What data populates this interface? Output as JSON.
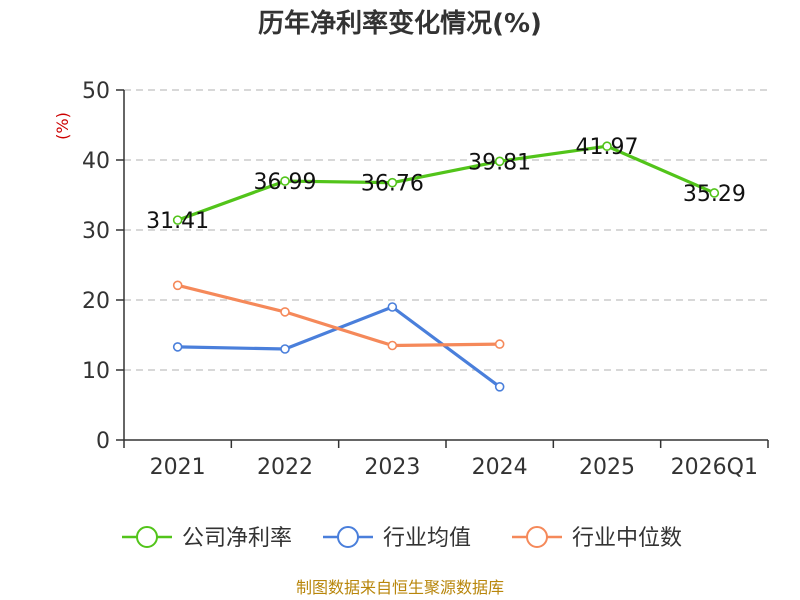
{
  "chart_data": {
    "type": "line",
    "title": "历年净利率变化情况(%)",
    "ylabel": "(%)",
    "xlabel": "",
    "categories": [
      "2021",
      "2022",
      "2023",
      "2024",
      "2025",
      "2026Q1"
    ],
    "ylim": [
      0,
      50
    ],
    "yticks": [
      0,
      10,
      20,
      30,
      40,
      50
    ],
    "grid": true,
    "legend_position": "bottom",
    "series": [
      {
        "name": "公司净利率",
        "color": "#52c41a",
        "values": [
          31.41,
          36.99,
          36.76,
          39.81,
          41.97,
          35.29
        ],
        "labels": [
          "31.41",
          "36.99",
          "36.76",
          "39.81",
          "41.97",
          "35.29"
        ]
      },
      {
        "name": "行业均值",
        "color": "#4a7fdb",
        "values": [
          13.3,
          13.0,
          19.0,
          7.6,
          null,
          null
        ]
      },
      {
        "name": "行业中位数",
        "color": "#f5895a",
        "values": [
          22.1,
          18.3,
          13.5,
          13.7,
          null,
          null
        ]
      }
    ]
  },
  "source": "制图数据来自恒生聚源数据库"
}
